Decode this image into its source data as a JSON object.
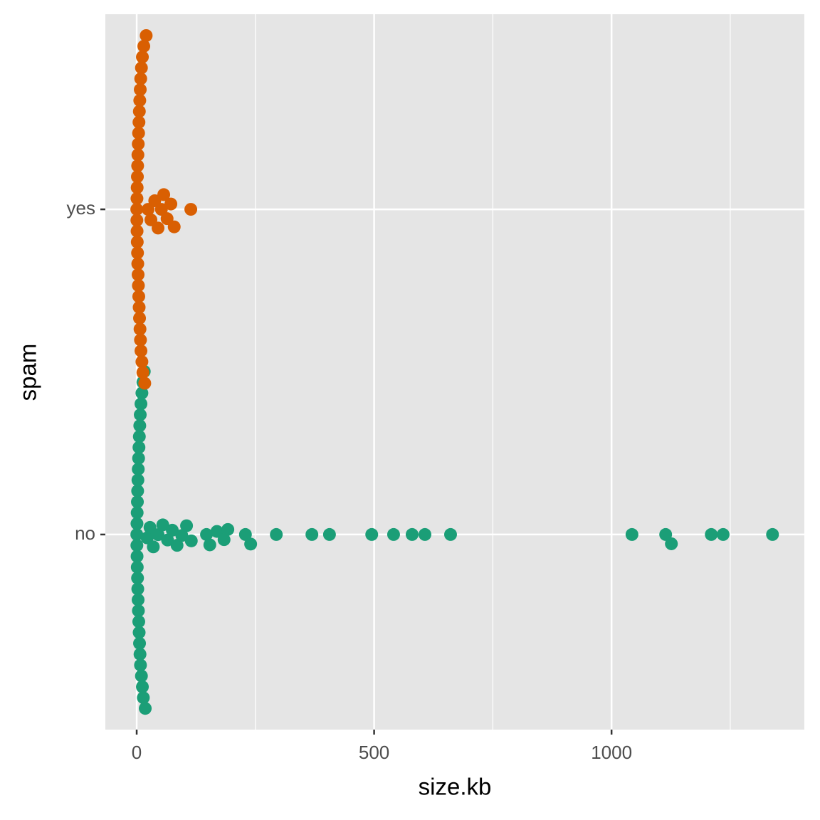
{
  "chart_data": {
    "type": "swarm",
    "x_label": "size.kb",
    "y_label": "spam",
    "xlim": [
      -66,
      1406
    ],
    "xticks": [
      0,
      500,
      1000
    ],
    "x_minor_grid": [
      250,
      750,
      1250
    ],
    "grid": true,
    "series": [
      {
        "name": "no",
        "color": "#1b9e77",
        "values": [
          0.2,
          0.4,
          0.6,
          0.8,
          1,
          1.2,
          1.5,
          1.8,
          2,
          2.3,
          2.6,
          3,
          3.3,
          3.6,
          4,
          4.4,
          4.8,
          5.2,
          5.6,
          6,
          6.5,
          7,
          7.5,
          8,
          9,
          10,
          11,
          12,
          13,
          14,
          16,
          18,
          22,
          28,
          35,
          45,
          55,
          65,
          75,
          85,
          95,
          105,
          115,
          147,
          154,
          169,
          184,
          192,
          229,
          240,
          294,
          369,
          406,
          495,
          541,
          580,
          607,
          661,
          1043,
          1114,
          1126,
          1210,
          1235,
          1339
        ]
      },
      {
        "name": "yes",
        "color": "#d95f02",
        "values": [
          0.2,
          0.4,
          0.6,
          0.8,
          1,
          1.2,
          1.5,
          1.8,
          2,
          2.3,
          2.6,
          3,
          3.3,
          3.6,
          4,
          4.4,
          4.8,
          5.2,
          5.6,
          6,
          6.5,
          7,
          7.5,
          8,
          8.5,
          9,
          10,
          11,
          12,
          13,
          15,
          17,
          20,
          24,
          30,
          38,
          45,
          52,
          57,
          64,
          72,
          79,
          114
        ]
      }
    ]
  }
}
